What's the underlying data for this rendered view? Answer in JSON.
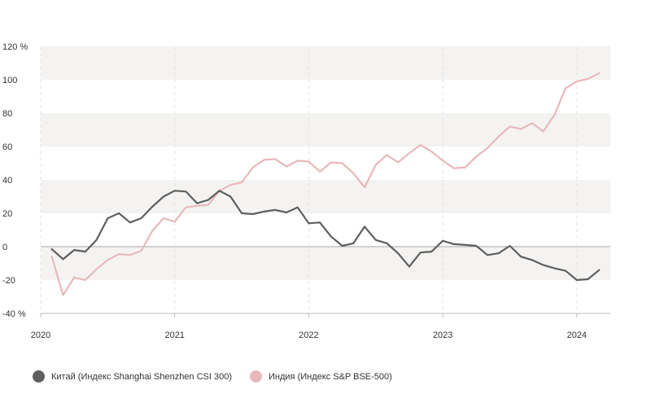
{
  "chart_data": {
    "type": "line",
    "ylim": [
      -40,
      120
    ],
    "y_ticks": [
      {
        "value": 120,
        "label": "120 %"
      },
      {
        "value": 100,
        "label": "100"
      },
      {
        "value": 80,
        "label": "80"
      },
      {
        "value": 60,
        "label": "60"
      },
      {
        "value": 40,
        "label": "40"
      },
      {
        "value": 20,
        "label": "20"
      },
      {
        "value": 0,
        "label": "0"
      },
      {
        "value": -20,
        "label": "-20"
      },
      {
        "value": -40,
        "label": "-40 %"
      }
    ],
    "x_ticks": [
      {
        "value": 2020,
        "label": "2020"
      },
      {
        "value": 2021,
        "label": "2021"
      },
      {
        "value": 2022,
        "label": "2022"
      },
      {
        "value": 2023,
        "label": "2023"
      },
      {
        "value": 2024,
        "label": "2024"
      }
    ],
    "xlim": [
      2020,
      2024.25
    ],
    "grid": "alternating horizontal bands",
    "legend_position": "bottom-left",
    "x_dates": [
      "2020-02",
      "2020-03",
      "2020-04",
      "2020-05",
      "2020-06",
      "2020-07",
      "2020-08",
      "2020-09",
      "2020-10",
      "2020-11",
      "2020-12",
      "2021-01",
      "2021-02",
      "2021-03",
      "2021-04",
      "2021-05",
      "2021-06",
      "2021-07",
      "2021-08",
      "2021-09",
      "2021-10",
      "2021-11",
      "2021-12",
      "2022-01",
      "2022-02",
      "2022-03",
      "2022-04",
      "2022-05",
      "2022-06",
      "2022-07",
      "2022-08",
      "2022-09",
      "2022-10",
      "2022-11",
      "2022-12",
      "2023-01",
      "2023-02",
      "2023-03",
      "2023-04",
      "2023-05",
      "2023-06",
      "2023-07",
      "2023-08",
      "2023-09",
      "2023-10",
      "2023-11",
      "2023-12",
      "2024-01",
      "2024-02",
      "2024-03"
    ],
    "series": [
      {
        "name": "Китай (Индекс Shanghai Shenzhen CSI 300)",
        "color": "#5f5f5f",
        "values": [
          -1.5,
          -7.5,
          -2,
          -3,
          4,
          17,
          20,
          14.5,
          17,
          24,
          30,
          33.5,
          33,
          26,
          28,
          33.5,
          30,
          20,
          19.5,
          21,
          22,
          20.5,
          23.5,
          14,
          14.5,
          6,
          0.5,
          2,
          12,
          4,
          2,
          -4,
          -12,
          -3.5,
          -3,
          3.5,
          1.5,
          1,
          0.5,
          -5,
          -4,
          0.5,
          -6,
          -8,
          -11,
          -13,
          -14.5,
          -20,
          -19.5,
          -14
        ]
      },
      {
        "name": "Индия (Индекс S&P BSE-500)",
        "color": "#e8b8bc",
        "values": [
          -6,
          -29,
          -18.5,
          -20,
          -13.5,
          -8,
          -4.5,
          -5,
          -2.5,
          9.5,
          17,
          15,
          23.5,
          24.5,
          25,
          33.5,
          37,
          38.5,
          47.5,
          52,
          52.5,
          48,
          51.5,
          51,
          45,
          50.5,
          50,
          44,
          35.5,
          49,
          55,
          50.5,
          56,
          61,
          57,
          51.5,
          47,
          47.5,
          54,
          59,
          66,
          72,
          70.5,
          74,
          69,
          79,
          95,
          99,
          100.5,
          104
        ]
      }
    ]
  }
}
